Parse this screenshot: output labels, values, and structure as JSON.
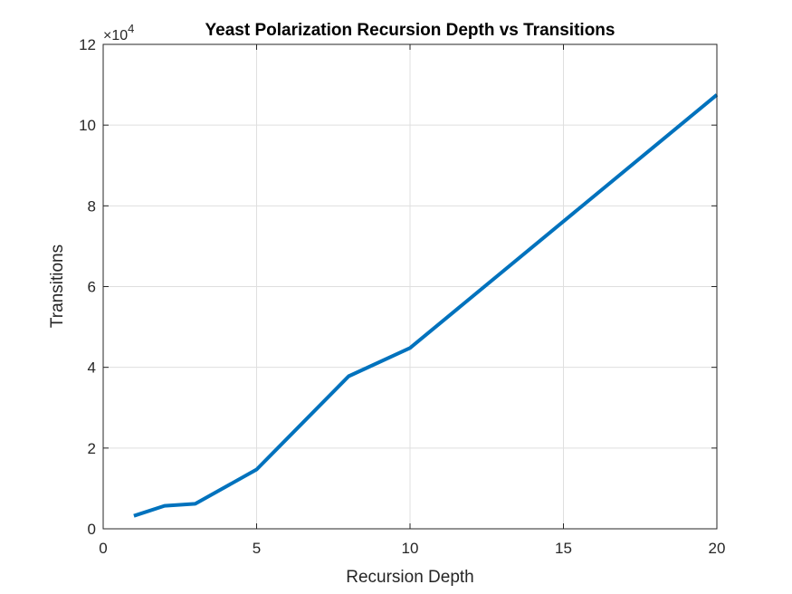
{
  "chart_data": {
    "type": "line",
    "title": "Yeast Polarization Recursion Depth vs Transitions",
    "xlabel": "Recursion Depth",
    "ylabel": "Transitions",
    "xlim": [
      0,
      20
    ],
    "ylim": [
      0,
      12
    ],
    "y_multiplier": {
      "base": "×10",
      "exponent": "4"
    },
    "xticks": [
      0,
      5,
      10,
      15,
      20
    ],
    "yticks": [
      0,
      2,
      4,
      6,
      8,
      10,
      12
    ],
    "grid": true,
    "legend": "none",
    "series": [
      {
        "x": [
          1,
          2,
          3,
          5,
          8,
          10,
          20
        ],
        "y": [
          0.32,
          0.57,
          0.62,
          1.47,
          3.78,
          4.48,
          10.75
        ],
        "color": "#0072BD"
      }
    ]
  }
}
